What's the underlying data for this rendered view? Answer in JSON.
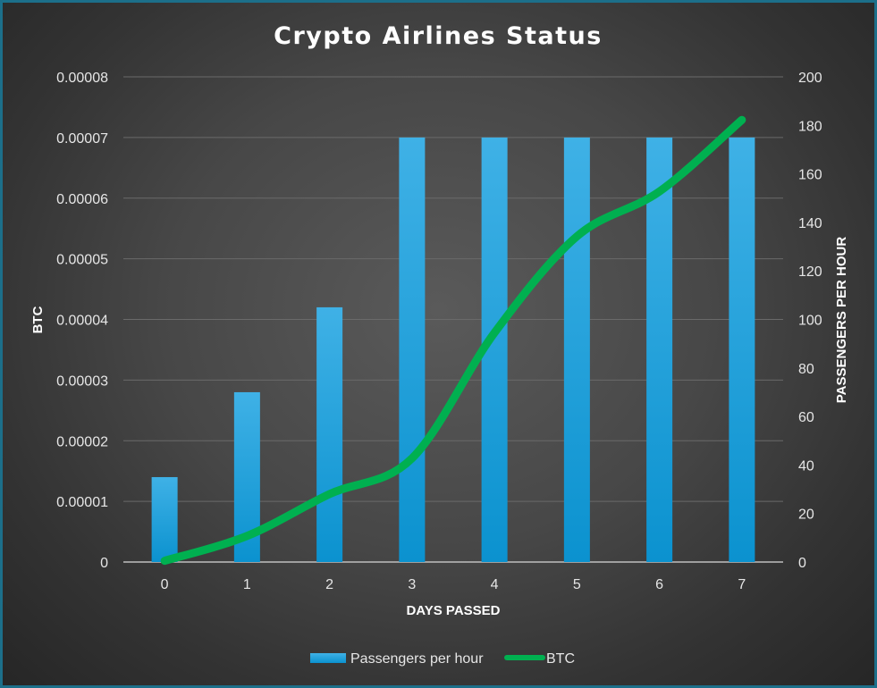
{
  "chart_data": {
    "type": "bar+line",
    "title": "Crypto Airlines Status",
    "xlabel": "DAYS PASSED",
    "ylabel_left": "BTC",
    "ylabel_right": "PASSENGERS PER HOUR",
    "categories": [
      "0",
      "1",
      "2",
      "3",
      "4",
      "5",
      "6",
      "7"
    ],
    "left_axis": {
      "min": 0,
      "max": 8e-05,
      "ticks": [
        "0",
        "0.00001",
        "0.00002",
        "0.00003",
        "0.00004",
        "0.00005",
        "0.00006",
        "0.00007",
        "0.00008"
      ]
    },
    "right_axis": {
      "min": 0,
      "max": 200,
      "ticks": [
        "0",
        "20",
        "40",
        "60",
        "80",
        "100",
        "120",
        "140",
        "160",
        "180",
        "200"
      ]
    },
    "series": [
      {
        "name": "Passengers per hour",
        "type": "bar",
        "axis": "right",
        "color": "#12a3e0",
        "values": [
          35,
          70,
          105,
          175,
          175,
          175,
          175,
          175
        ]
      },
      {
        "name": "BTC",
        "type": "line",
        "axis": "left",
        "color": "#00b050",
        "values": [
          2e-07,
          4.3e-06,
          1.12e-05,
          1.71e-05,
          3.78e-05,
          5.37e-05,
          6.11e-05,
          7.29e-05
        ]
      }
    ],
    "grid": true,
    "legend_position": "bottom"
  }
}
